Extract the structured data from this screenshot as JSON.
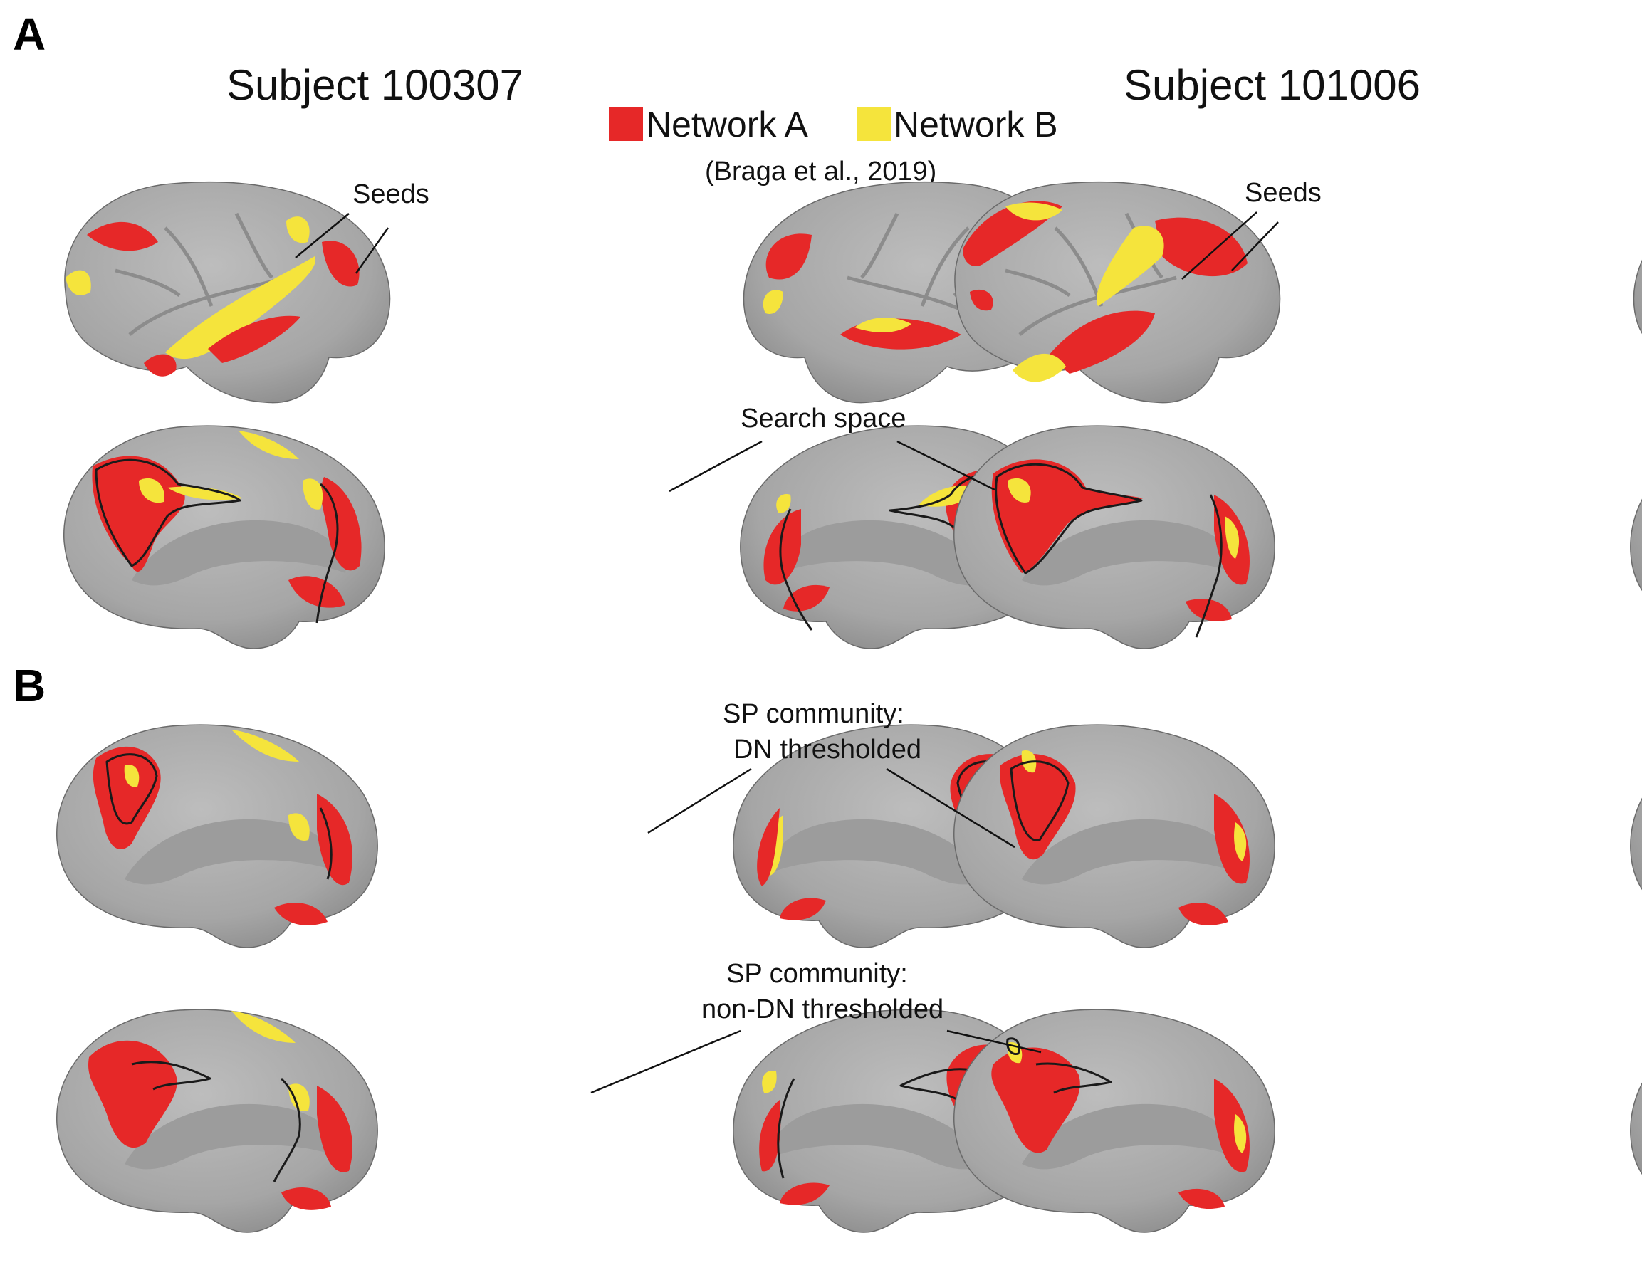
{
  "panels": {
    "a": "A",
    "b": "B"
  },
  "subjects": {
    "left": "Subject 100307",
    "right": "Subject 101006"
  },
  "legend": {
    "items": [
      {
        "label": "Network A",
        "color": "#e62828"
      },
      {
        "label": "Network B",
        "color": "#f5e43c"
      }
    ],
    "citation": "(Braga et al., 2019)"
  },
  "annotations": {
    "seeds": "Seeds",
    "search_space": "Search space",
    "sp_dn_line1": "SP community:",
    "sp_dn_line2": "DN thresholded",
    "sp_nondn_line1": "SP community:",
    "sp_nondn_line2": "non-DN thresholded"
  },
  "colors": {
    "network_a": "#e62828",
    "network_b": "#f5e43c",
    "cortex": "#a7a7a7",
    "outline": "#1a1a1a"
  }
}
